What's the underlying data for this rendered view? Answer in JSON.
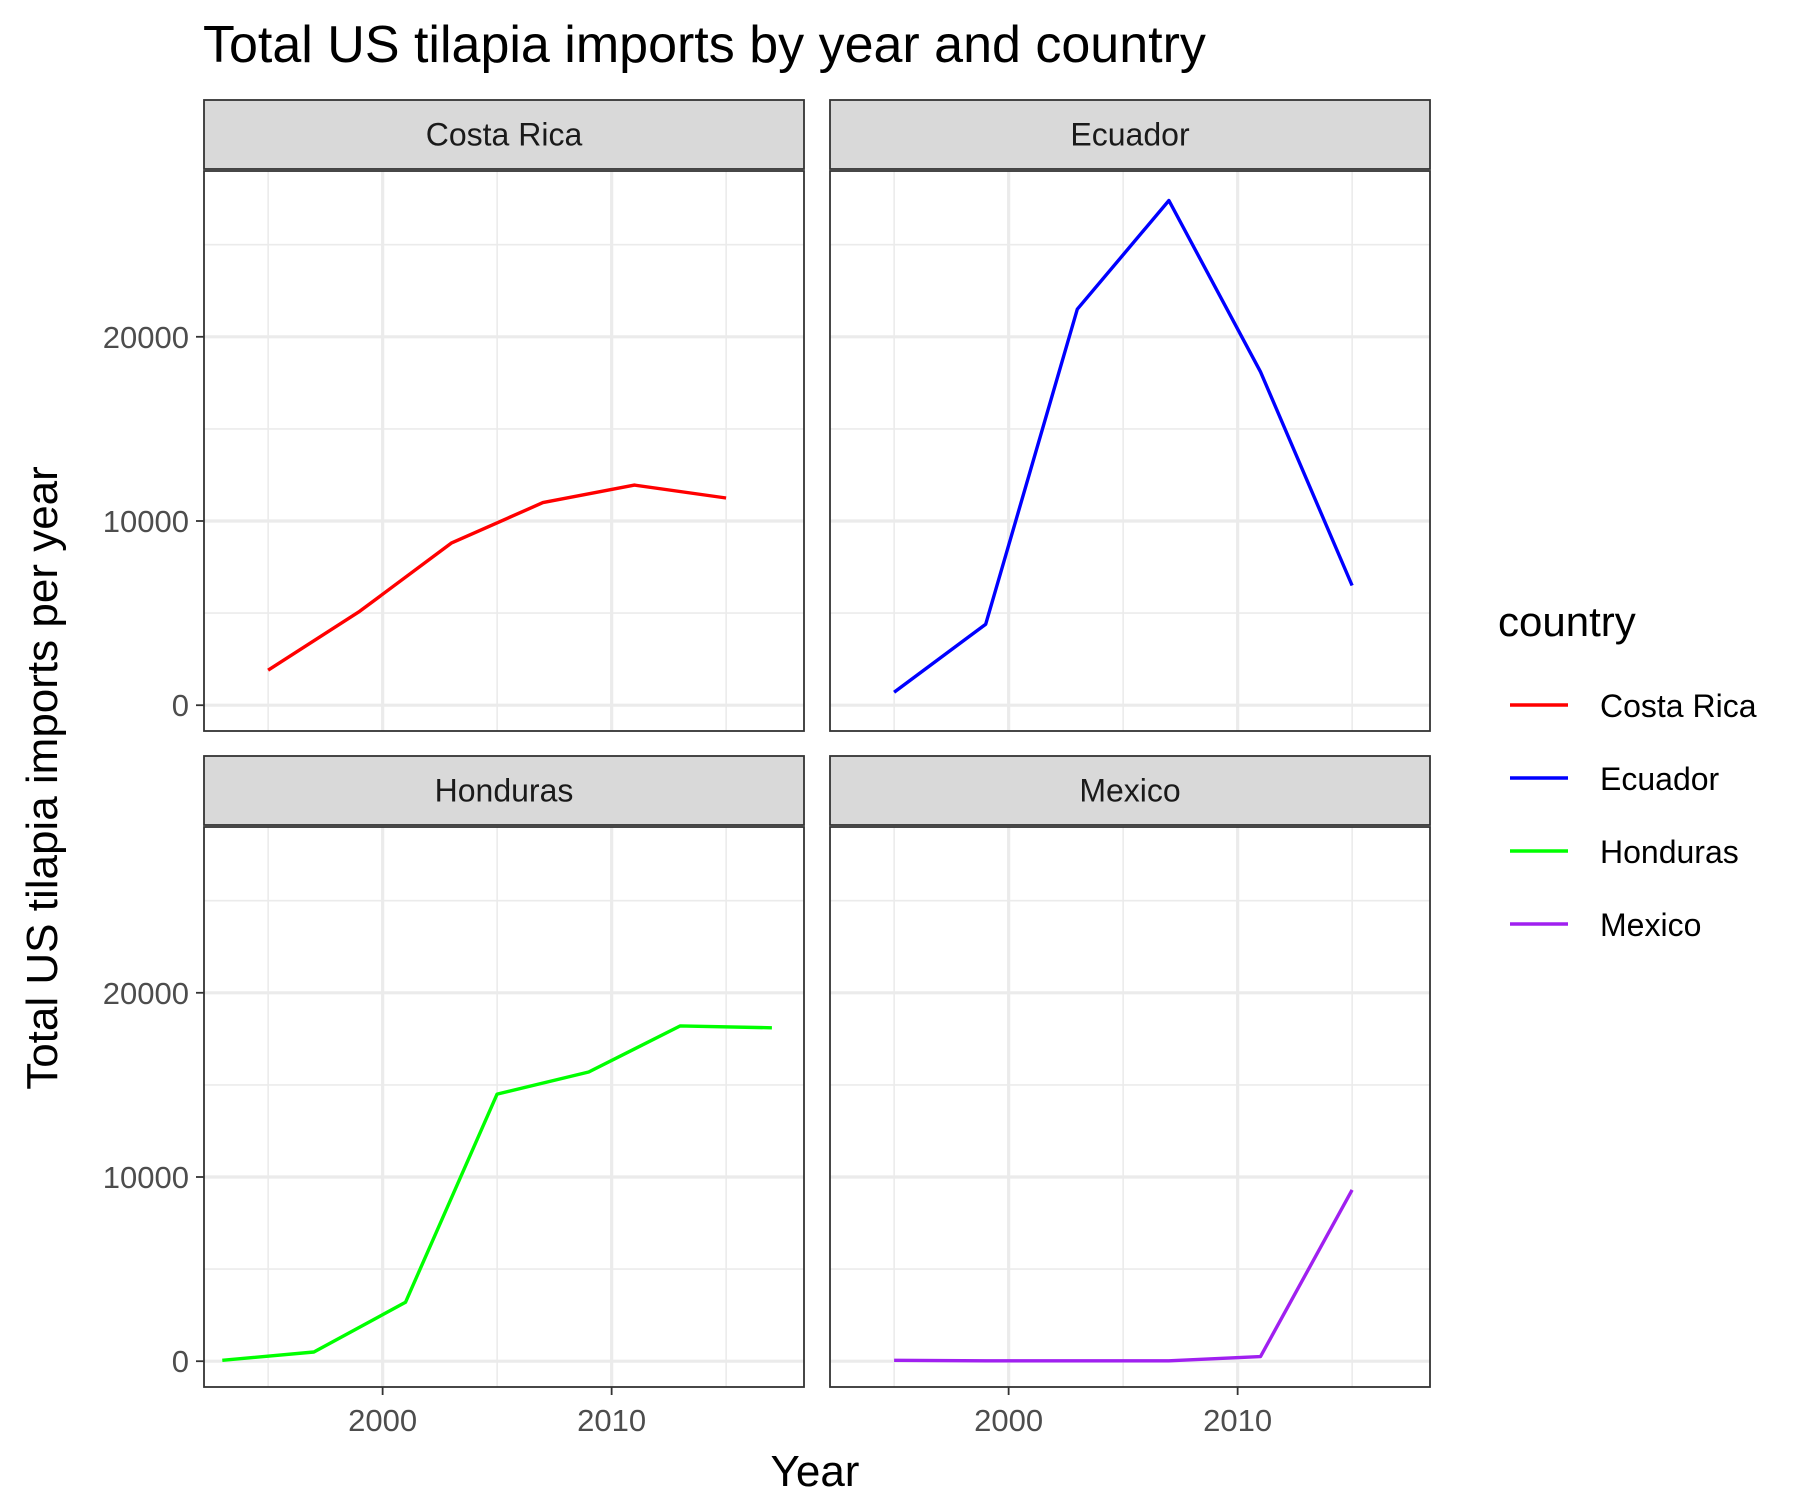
{
  "chart_data": {
    "type": "line",
    "title": "Total US tilapia imports by year and country",
    "xlabel": "Year",
    "ylabel": "Total US tilapia imports per year",
    "xlim": [
      1992.2,
      2018.4
    ],
    "ylim": [
      -1400,
      29000
    ],
    "x_ticks": [
      2000,
      2010
    ],
    "x_tick_labels": [
      "2000",
      "2010"
    ],
    "y_ticks": [
      0,
      10000,
      20000
    ],
    "y_tick_labels": [
      "0",
      "10000",
      "20000"
    ],
    "grid": true,
    "facet_layout": "2x2",
    "legend": {
      "title": "country",
      "position": "right"
    },
    "series": [
      {
        "name": "Costa Rica",
        "color": "#ff0000",
        "x": [
          1995,
          1999,
          2003,
          2007,
          2011,
          2015
        ],
        "y": [
          1900,
          5100,
          8800,
          11000,
          11950,
          11250
        ]
      },
      {
        "name": "Ecuador",
        "color": "#0000ff",
        "x": [
          1995,
          1999,
          2003,
          2007,
          2011,
          2015
        ],
        "y": [
          700,
          4400,
          21500,
          27400,
          18100,
          6500
        ]
      },
      {
        "name": "Honduras",
        "color": "#00ff00",
        "x": [
          1993,
          1997,
          2001,
          2005,
          2009,
          2013,
          2017
        ],
        "y": [
          50,
          500,
          3200,
          14500,
          15700,
          18200,
          18100
        ]
      },
      {
        "name": "Mexico",
        "color": "#a020f0",
        "x": [
          1995,
          1999,
          2003,
          2007,
          2011,
          2015
        ],
        "y": [
          50,
          20,
          20,
          20,
          250,
          9300
        ]
      }
    ]
  }
}
